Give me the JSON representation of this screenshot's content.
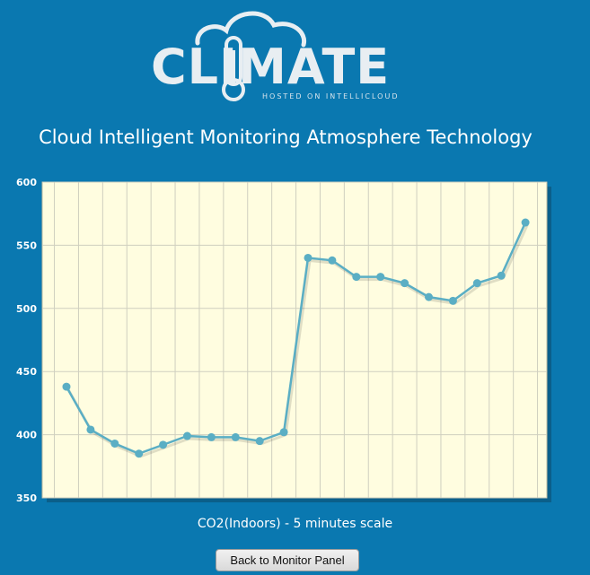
{
  "logo": {
    "wordmark": "CLIMATE",
    "tagline": "HOSTED ON INTELLICLOUD"
  },
  "page_title": "Cloud Intelligent Monitoring Atmosphere Technology",
  "button": {
    "back_label": "Back to Monitor Panel"
  },
  "colors": {
    "background": "#0a78b0",
    "plot_background": "#fffde0",
    "line": "#5aaec4",
    "point": "#5aaec4"
  },
  "chart_data": {
    "type": "line",
    "title": "",
    "xlabel": "CO2(Indoors) - 5 minutes scale",
    "ylabel": "",
    "ylim": [
      350,
      600
    ],
    "yticks": [
      350,
      400,
      450,
      500,
      550,
      600
    ],
    "grid": true,
    "series": [
      {
        "values": [
          438,
          404,
          393,
          385,
          392,
          399,
          398,
          398,
          395,
          402,
          540,
          538,
          525,
          525,
          520,
          509,
          506,
          520,
          526,
          568
        ]
      }
    ]
  }
}
